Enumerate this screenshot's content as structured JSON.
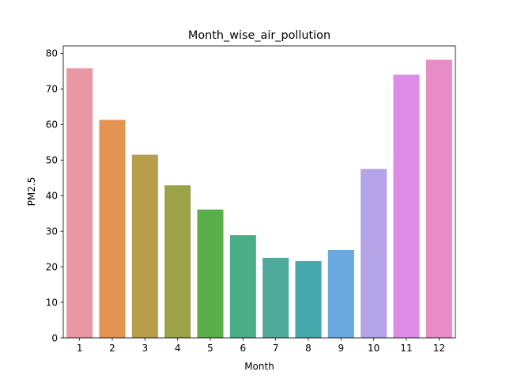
{
  "chart_data": {
    "type": "bar",
    "title": "Month_wise_air_pollution",
    "xlabel": "Month",
    "ylabel": "PM2.5",
    "categories": [
      "1",
      "2",
      "3",
      "4",
      "5",
      "6",
      "7",
      "8",
      "9",
      "10",
      "11",
      "12"
    ],
    "values": [
      75.8,
      61.3,
      51.5,
      42.9,
      36.1,
      28.9,
      22.5,
      21.6,
      24.7,
      47.5,
      74.0,
      78.2
    ],
    "ylim": [
      0,
      82.1
    ],
    "yticks": [
      "0",
      "10",
      "20",
      "30",
      "40",
      "50",
      "60",
      "70",
      "80"
    ],
    "grid": false,
    "legend": "none",
    "colors": [
      "#ea96a3",
      "#e39453",
      "#b89d4b",
      "#9ba247",
      "#5aae4c",
      "#4cae88",
      "#4eaa9a",
      "#45a8ac",
      "#6aa9e0",
      "#b5a3e8",
      "#dd8ce8",
      "#e78cc6"
    ]
  }
}
